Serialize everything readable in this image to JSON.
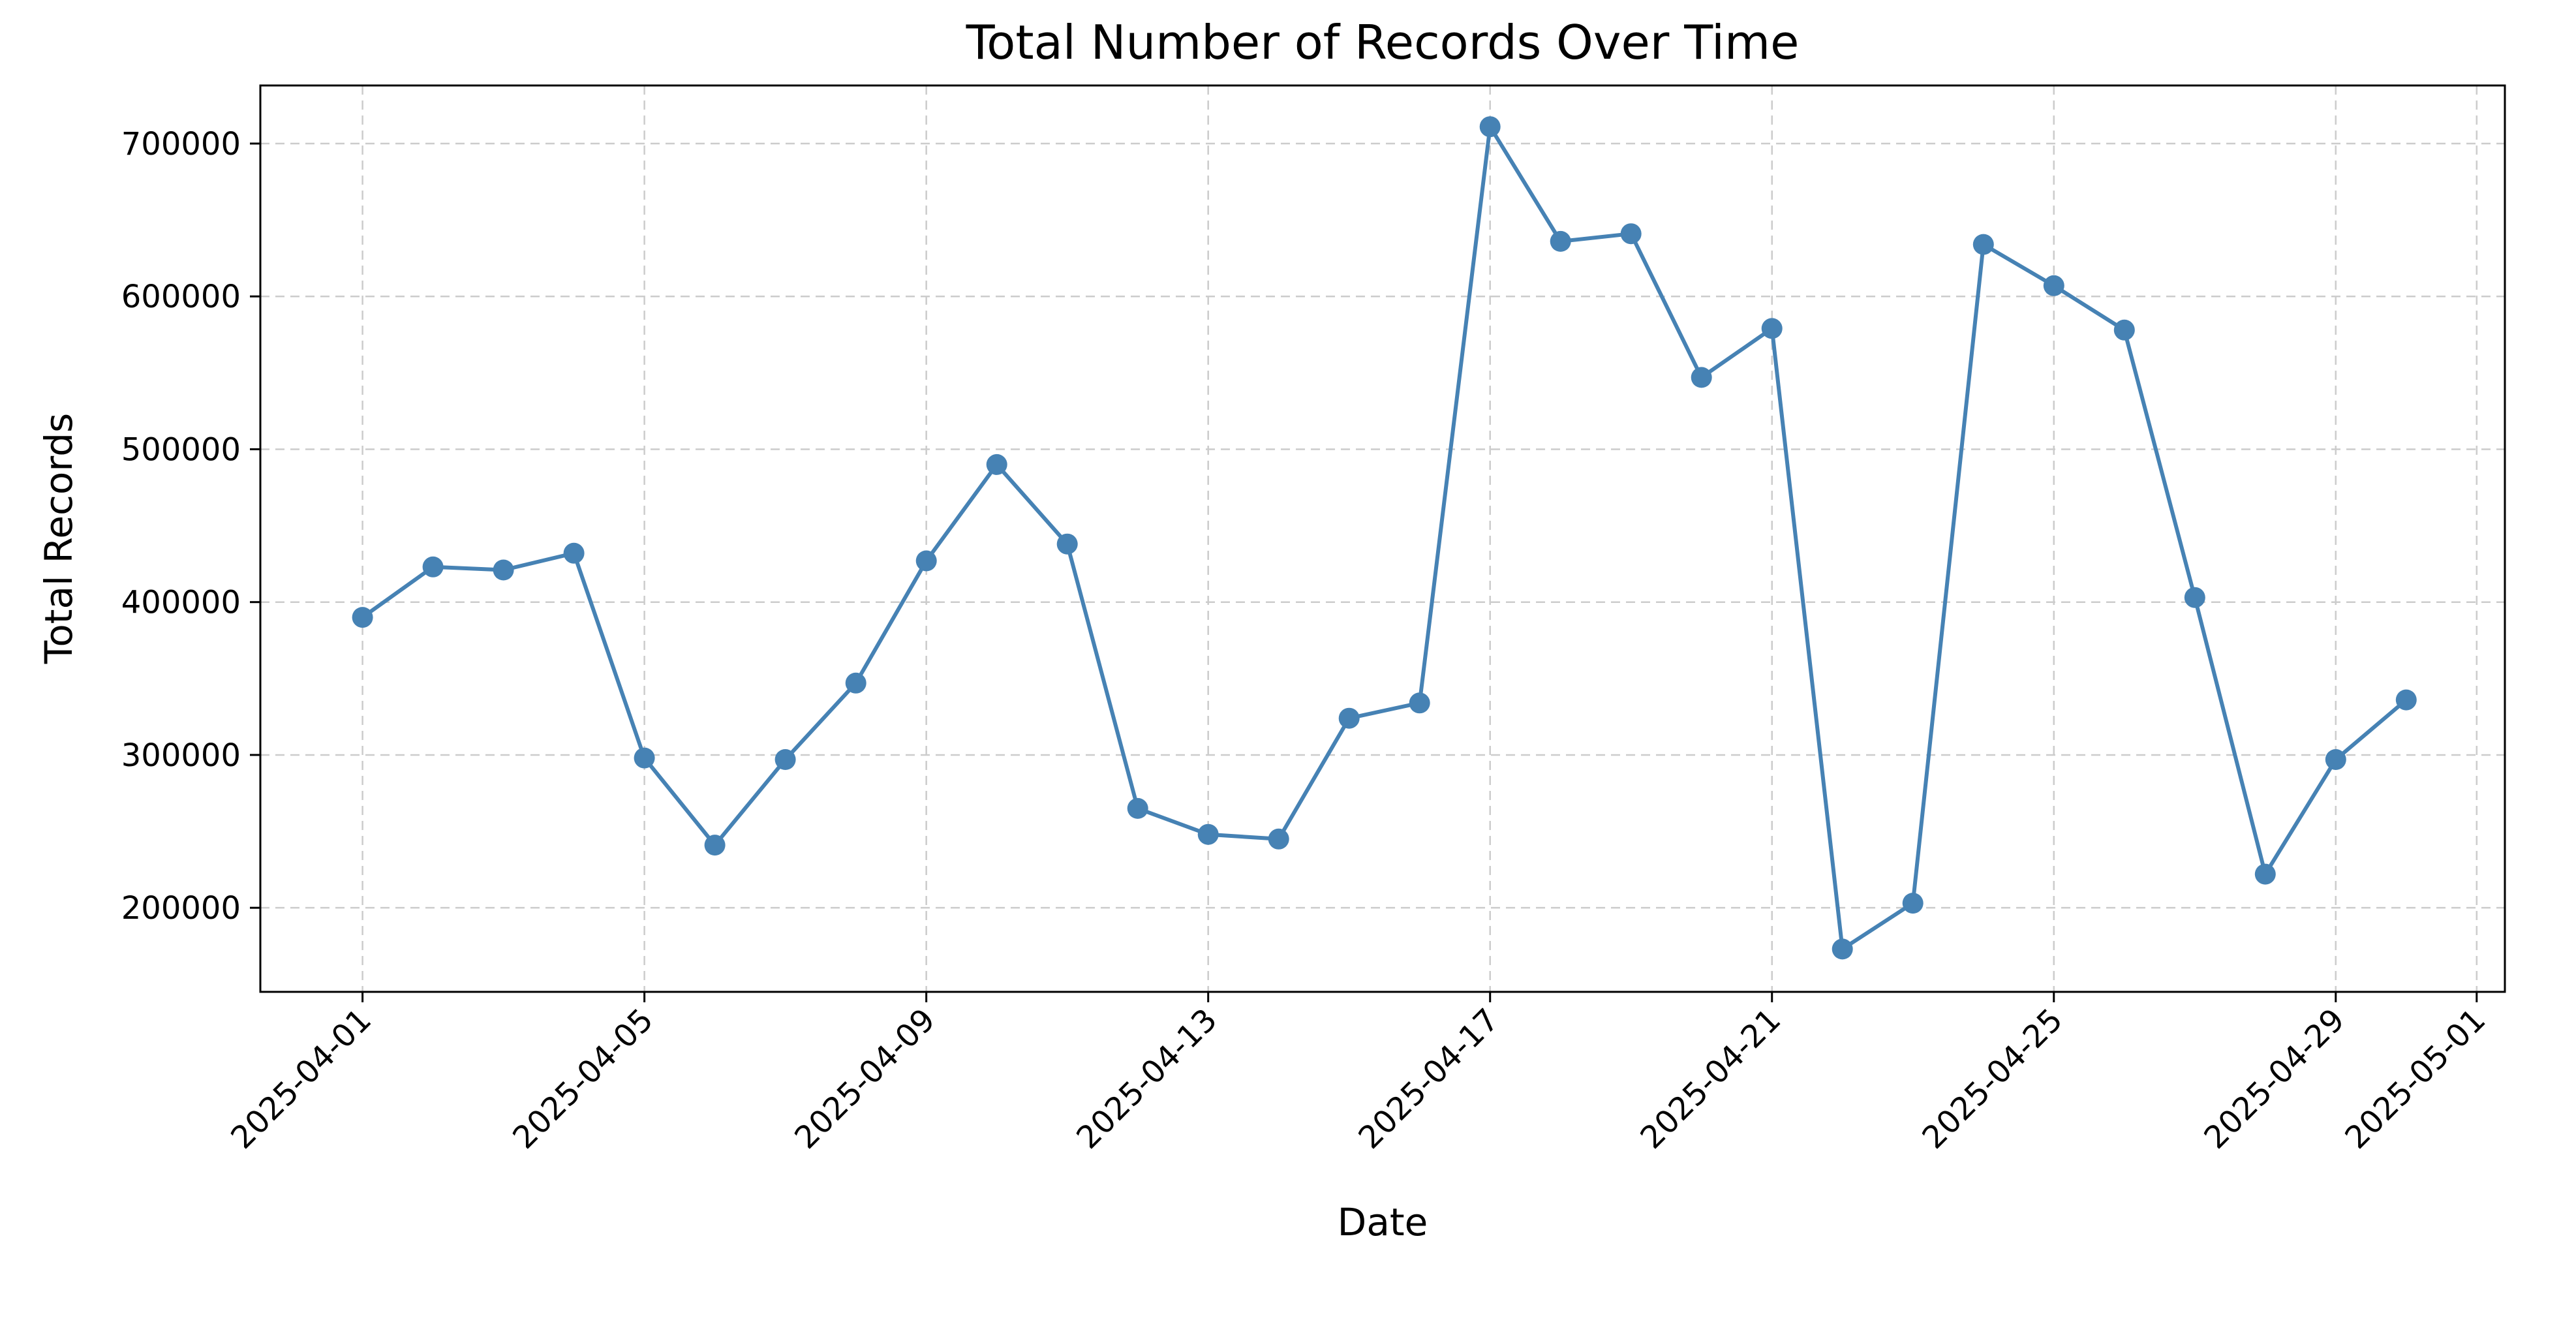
{
  "chart_data": {
    "type": "line",
    "title": "Total Number of Records Over Time",
    "xlabel": "Date",
    "ylabel": "Total Records",
    "x_tick_labels": [
      "2025-04-01",
      "2025-04-05",
      "2025-04-09",
      "2025-04-13",
      "2025-04-17",
      "2025-04-21",
      "2025-04-25",
      "2025-04-29",
      "2025-05-01"
    ],
    "y_tick_labels": [
      "200000",
      "300000",
      "400000",
      "500000",
      "600000",
      "700000"
    ],
    "xlim": [
      "2025-03-30",
      "2025-05-01"
    ],
    "ylim": [
      145000,
      738000
    ],
    "grid": true,
    "grid_style": "dashed",
    "series": [
      {
        "color": "#4682b4",
        "marker": "circle",
        "x": [
          "2025-04-01",
          "2025-04-02",
          "2025-04-03",
          "2025-04-04",
          "2025-04-05",
          "2025-04-06",
          "2025-04-07",
          "2025-04-08",
          "2025-04-09",
          "2025-04-10",
          "2025-04-11",
          "2025-04-12",
          "2025-04-13",
          "2025-04-14",
          "2025-04-15",
          "2025-04-16",
          "2025-04-17",
          "2025-04-18",
          "2025-04-19",
          "2025-04-20",
          "2025-04-21",
          "2025-04-22",
          "2025-04-23",
          "2025-04-24",
          "2025-04-25",
          "2025-04-26",
          "2025-04-27",
          "2025-04-28",
          "2025-04-29",
          "2025-04-30"
        ],
        "y": [
          390000,
          423000,
          421000,
          432000,
          298000,
          241000,
          297000,
          347000,
          427000,
          490000,
          438000,
          265000,
          248000,
          245000,
          324000,
          334000,
          711000,
          636000,
          641000,
          547000,
          579000,
          173000,
          203000,
          634000,
          607000,
          578000,
          403000,
          222000,
          297000,
          336000
        ]
      }
    ]
  }
}
